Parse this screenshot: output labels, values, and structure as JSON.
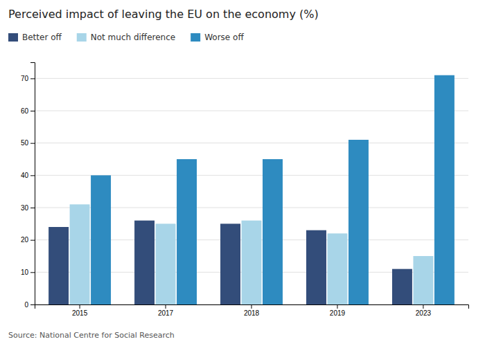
{
  "chart_data": {
    "type": "bar",
    "title": "Perceived impact of leaving the EU on the economy (%)",
    "source": "Source: National Centre for Social Research",
    "categories": [
      "2015",
      "2017",
      "2018",
      "2019",
      "2023"
    ],
    "series": [
      {
        "name": "Better off",
        "color": "#334d7a",
        "values": [
          24,
          26,
          25,
          23,
          11
        ]
      },
      {
        "name": "Not much difference",
        "color": "#a8d5e8",
        "values": [
          31,
          25,
          26,
          22,
          15
        ]
      },
      {
        "name": "Worse off",
        "color": "#2e8bc0",
        "values": [
          40,
          45,
          45,
          51,
          71
        ]
      }
    ],
    "ylim": [
      0,
      75
    ],
    "yticks": [
      0,
      10,
      20,
      30,
      40,
      50,
      60,
      70
    ],
    "grid": true,
    "legend": "upper left"
  }
}
